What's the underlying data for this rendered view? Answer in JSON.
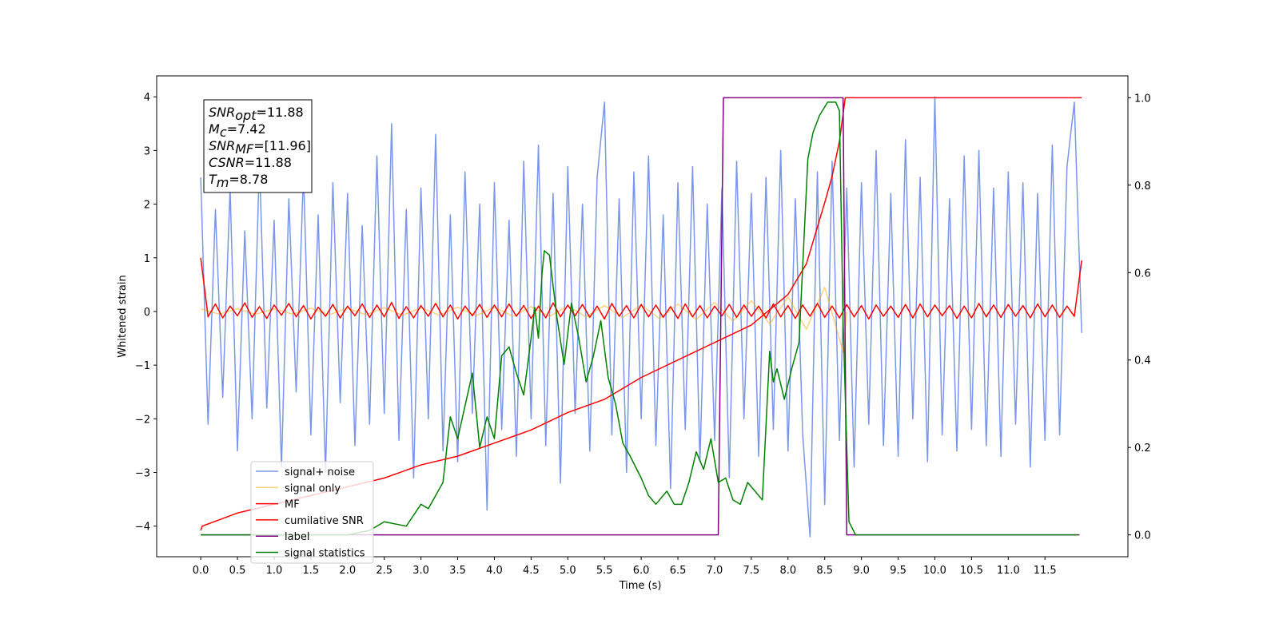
{
  "chart_data": {
    "type": "line",
    "xlabel": "Time (s)",
    "ylabel": "Whitened strain",
    "xlim": [
      -0.6,
      12.63
    ],
    "ylim": [
      -4.57,
      4.39
    ],
    "y2lim": [
      -0.05,
      1.05
    ],
    "xticks": [
      {
        "value": 0,
        "label": "0.0"
      },
      {
        "value": 0.5,
        "label": "0.5"
      },
      {
        "value": 1,
        "label": "1.0"
      },
      {
        "value": 1.5,
        "label": "1.5"
      },
      {
        "value": 2,
        "label": "2.0"
      },
      {
        "value": 2.5,
        "label": "2.5"
      },
      {
        "value": 3,
        "label": "3.0"
      },
      {
        "value": 3.5,
        "label": "3.5"
      },
      {
        "value": 4,
        "label": "4.0"
      },
      {
        "value": 4.5,
        "label": "4.5"
      },
      {
        "value": 5,
        "label": "5.0"
      },
      {
        "value": 5.5,
        "label": "5.5"
      },
      {
        "value": 6,
        "label": "6.0"
      },
      {
        "value": 6.5,
        "label": "6.5"
      },
      {
        "value": 7,
        "label": "7.0"
      },
      {
        "value": 7.5,
        "label": "7.5"
      },
      {
        "value": 8,
        "label": "8.0"
      },
      {
        "value": 8.5,
        "label": "8.5"
      },
      {
        "value": 9,
        "label": "9.0"
      },
      {
        "value": 9.5,
        "label": "9.5"
      },
      {
        "value": 10,
        "label": "10.0"
      },
      {
        "value": 10.5,
        "label": "10.5"
      },
      {
        "value": 11,
        "label": "11.0"
      },
      {
        "value": 11.5,
        "label": "11.5"
      }
    ],
    "yticks": [
      {
        "value": -4,
        "label": "−4"
      },
      {
        "value": -3,
        "label": "−3"
      },
      {
        "value": -2,
        "label": "−2"
      },
      {
        "value": -1,
        "label": "−1"
      },
      0,
      1,
      2,
      3,
      4
    ],
    "y2ticks": [
      {
        "value": 0,
        "label": "0.0"
      },
      {
        "value": 0.2,
        "label": "0.2"
      },
      {
        "value": 0.4,
        "label": "0.4"
      },
      {
        "value": 0.6,
        "label": "0.6"
      },
      {
        "value": 0.8,
        "label": "0.8"
      },
      {
        "value": 1,
        "label": "1.0"
      }
    ],
    "grid": false,
    "legend": "lower left",
    "annotation": [
      {
        "main": "SNR",
        "sub": "opt",
        "rest": "=11.88"
      },
      {
        "main": "M",
        "sub": "c",
        "rest": "=7.42"
      },
      {
        "main": "SNR",
        "sub": "MF",
        "rest": "=[11.96]"
      },
      {
        "main": "CSNR",
        "rest": "=11.88"
      },
      {
        "main": "T",
        "sub": "m",
        "rest": "=8.78"
      }
    ],
    "x": [
      0,
      0.1,
      0.2,
      0.3,
      0.4,
      0.5,
      0.6,
      0.7,
      0.8,
      0.9,
      1,
      1.1,
      1.2,
      1.3,
      1.4,
      1.5,
      1.6,
      1.7,
      1.8,
      1.9,
      2,
      2.1,
      2.2,
      2.3,
      2.4,
      2.5,
      2.6,
      2.7,
      2.8,
      2.9,
      3,
      3.1,
      3.2,
      3.3,
      3.4,
      3.5,
      3.6,
      3.7,
      3.8,
      3.9,
      4,
      4.1,
      4.2,
      4.3,
      4.4,
      4.5,
      4.6,
      4.7,
      4.8,
      4.9,
      5,
      5.1,
      5.2,
      5.3,
      5.4,
      5.5,
      5.6,
      5.7,
      5.8,
      5.9,
      6,
      6.1,
      6.2,
      6.3,
      6.4,
      6.5,
      6.6,
      6.7,
      6.8,
      6.9,
      7,
      7.1,
      7.2,
      7.3,
      7.4,
      7.5,
      7.6,
      7.7,
      7.8,
      7.9,
      8,
      8.1,
      8.2,
      8.3,
      8.4,
      8.5,
      8.6,
      8.7,
      8.8,
      8.9,
      9,
      9.1,
      9.2,
      9.3,
      9.4,
      9.5,
      9.6,
      9.7,
      9.8,
      9.9,
      10,
      10.1,
      10.2,
      10.3,
      10.4,
      10.5,
      10.6,
      10.7,
      10.8,
      10.9,
      11,
      11.1,
      11.2,
      11.3,
      11.4,
      11.5,
      11.6,
      11.7,
      11.8,
      11.9,
      12
    ],
    "series": [
      {
        "name": "signal+ noise",
        "color": "#4169e1",
        "alpha": 0.7,
        "values": [
          2.5,
          -2.1,
          1.9,
          -1.6,
          2.3,
          -2.6,
          1.5,
          -2.0,
          2.8,
          -1.8,
          1.7,
          -2.9,
          2.1,
          -1.5,
          2.6,
          -2.3,
          1.8,
          -3.0,
          2.4,
          -1.7,
          2.2,
          -2.5,
          1.6,
          -2.1,
          2.9,
          -1.9,
          3.5,
          -2.4,
          1.9,
          -3.1,
          2.3,
          -2.0,
          3.3,
          -2.6,
          1.8,
          -2.8,
          2.6,
          -1.9,
          2.0,
          -3.7,
          2.4,
          -2.2,
          1.7,
          -2.7,
          2.8,
          -2.0,
          3.1,
          -2.5,
          2.2,
          -3.2,
          2.7,
          -1.9,
          2.0,
          -2.6,
          2.5,
          3.9,
          -2.3,
          2.1,
          -3.0,
          2.6,
          -2.0,
          2.9,
          -2.5,
          1.8,
          -3.3,
          2.4,
          -2.2,
          2.7,
          -2.8,
          2.0,
          -2.4,
          2.3,
          -3.1,
          2.8,
          -2.0,
          2.2,
          -2.7,
          2.5,
          -2.2,
          3.0,
          -2.6,
          2.1,
          -2.3,
          -4.2,
          2.6,
          -3.6,
          2.8,
          -2.4,
          2.3,
          -2.9,
          2.4,
          -2.1,
          3.0,
          -2.5,
          2.2,
          -2.7,
          3.2,
          -2.0,
          2.5,
          -2.8,
          4.0,
          -2.3,
          2.1,
          -2.6,
          2.9,
          -2.2,
          3.0,
          -2.5,
          2.3,
          -2.7,
          2.6,
          -2.1,
          2.4,
          -2.9,
          2.2,
          -2.4,
          3.1,
          -2.3,
          2.7,
          3.9,
          -0.4
        ]
      },
      {
        "name": "signal only",
        "color": "#ffa500",
        "alpha": 0.5,
        "x": [
          0,
          0.25,
          0.5,
          0.75,
          1,
          1.25,
          1.5,
          1.75,
          2,
          2.25,
          2.5,
          2.75,
          3,
          3.25,
          3.5,
          3.75,
          4,
          4.25,
          4.5,
          4.75,
          5,
          5.25,
          5.5,
          5.75,
          6,
          6.25,
          6.5,
          6.75,
          7,
          7.25,
          7.5,
          7.75,
          8,
          8.25,
          8.5,
          8.75,
          8.8
        ],
        "values": [
          0.05,
          -0.05,
          0.05,
          -0.05,
          0.05,
          -0.05,
          0.06,
          -0.06,
          0.06,
          -0.06,
          0.07,
          -0.07,
          0.07,
          -0.07,
          0.08,
          -0.08,
          0.08,
          -0.09,
          0.09,
          -0.09,
          0.1,
          -0.1,
          0.11,
          -0.11,
          0.12,
          -0.13,
          0.14,
          -0.15,
          0.17,
          -0.18,
          0.2,
          -0.23,
          0.27,
          -0.33,
          0.45,
          -0.75,
          0
        ]
      },
      {
        "name": "MF",
        "color": "#ff0000",
        "values": [
          1.0,
          -0.1,
          0.14,
          -0.12,
          0.1,
          -0.08,
          0.16,
          -0.11,
          0.09,
          -0.13,
          0.12,
          -0.07,
          0.15,
          -0.1,
          0.11,
          -0.14,
          0.08,
          -0.09,
          0.13,
          -0.12,
          0.1,
          -0.08,
          0.14,
          -0.11,
          0.12,
          -0.1,
          0.17,
          -0.13,
          0.09,
          -0.12,
          0.11,
          -0.09,
          0.15,
          -0.1,
          0.12,
          -0.14,
          0.1,
          -0.08,
          0.13,
          -0.11,
          0.12,
          -0.1,
          0.14,
          -0.09,
          0.11,
          -0.13,
          0.1,
          -0.12,
          0.16,
          -0.1,
          0.12,
          -0.08,
          0.13,
          -0.11,
          0.1,
          -0.14,
          0.15,
          -0.09,
          0.11,
          -0.12,
          0.13,
          -0.1,
          0.12,
          -0.11,
          0.09,
          -0.13,
          0.14,
          -0.1,
          0.11,
          -0.12,
          0.1,
          -0.08,
          0.13,
          -0.11,
          0.12,
          -0.09,
          0.1,
          -0.12,
          0.14,
          -0.1,
          0.11,
          -0.13,
          0.12,
          -0.09,
          0.15,
          -0.11,
          0.1,
          -0.12,
          0.13,
          -0.1,
          0.11,
          -0.14,
          0.12,
          -0.09,
          0.1,
          -0.11,
          0.13,
          -0.12,
          0.14,
          -0.1,
          0.12,
          -0.08,
          0.11,
          -0.13,
          0.1,
          -0.12,
          0.15,
          -0.1,
          0.12,
          -0.11,
          0.13,
          -0.09,
          0.11,
          -0.12,
          0.14,
          -0.1,
          0.12,
          -0.11,
          0.1,
          -0.09,
          0.95
        ]
      },
      {
        "name": "cumilative SNR",
        "color": "#ff0000",
        "axis": "y2",
        "x": [
          0,
          0.02,
          0.5,
          1,
          1.5,
          2,
          2.5,
          3,
          3.5,
          4,
          4.5,
          5,
          5.5,
          6,
          6.5,
          7,
          7.5,
          8,
          8.25,
          8.5,
          8.6,
          8.7,
          8.78,
          12
        ],
        "values": [
          0.01,
          0.02,
          0.05,
          0.07,
          0.09,
          0.11,
          0.13,
          0.16,
          0.18,
          0.21,
          0.24,
          0.28,
          0.31,
          0.36,
          0.4,
          0.44,
          0.48,
          0.55,
          0.62,
          0.76,
          0.82,
          0.9,
          1.0,
          1.0
        ]
      },
      {
        "name": "label",
        "color": "#800080",
        "axis": "y2",
        "x": [
          0,
          7.05,
          7.12,
          8.75,
          8.8,
          11.97
        ],
        "values": [
          0,
          0,
          1,
          1,
          0,
          0
        ]
      },
      {
        "name": "signal statistics",
        "color": "#008000",
        "axis": "y2",
        "x": [
          0,
          2.0,
          2.3,
          2.5,
          2.8,
          3.0,
          3.1,
          3.3,
          3.4,
          3.5,
          3.7,
          3.8,
          3.9,
          4.0,
          4.1,
          4.2,
          4.3,
          4.4,
          4.5,
          4.55,
          4.6,
          4.65,
          4.68,
          4.75,
          4.85,
          4.95,
          5.05,
          5.15,
          5.25,
          5.35,
          5.45,
          5.55,
          5.65,
          5.75,
          5.85,
          6.0,
          6.1,
          6.2,
          6.35,
          6.45,
          6.55,
          6.65,
          6.75,
          6.85,
          6.95,
          7.05,
          7.15,
          7.25,
          7.35,
          7.45,
          7.55,
          7.65,
          7.75,
          7.8,
          7.85,
          7.95,
          8.05,
          8.15,
          8.27,
          8.34,
          8.43,
          8.54,
          8.65,
          8.7,
          8.75,
          8.83,
          8.92,
          11.95
        ],
        "values": [
          0,
          0,
          0.01,
          0.03,
          0.02,
          0.07,
          0.06,
          0.12,
          0.27,
          0.22,
          0.37,
          0.2,
          0.27,
          0.22,
          0.41,
          0.43,
          0.37,
          0.32,
          0.45,
          0.52,
          0.45,
          0.6,
          0.65,
          0.64,
          0.5,
          0.39,
          0.53,
          0.45,
          0.35,
          0.41,
          0.49,
          0.36,
          0.3,
          0.21,
          0.18,
          0.13,
          0.09,
          0.07,
          0.1,
          0.07,
          0.07,
          0.12,
          0.19,
          0.15,
          0.22,
          0.12,
          0.13,
          0.08,
          0.07,
          0.12,
          0.1,
          0.08,
          0.42,
          0.35,
          0.38,
          0.31,
          0.38,
          0.44,
          0.86,
          0.92,
          0.96,
          0.99,
          0.99,
          0.97,
          0.49,
          0.03,
          0,
          0
        ]
      }
    ]
  }
}
